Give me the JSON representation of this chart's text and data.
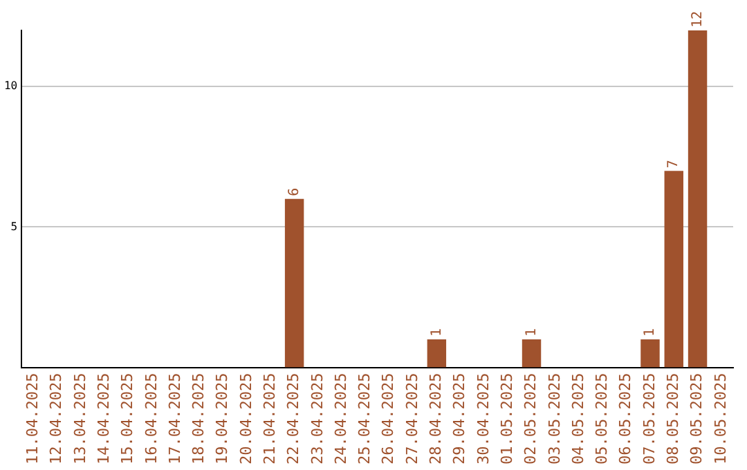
{
  "chart_data": {
    "type": "bar",
    "categories": [
      "11.04.2025",
      "12.04.2025",
      "13.04.2025",
      "14.04.2025",
      "15.04.2025",
      "16.04.2025",
      "17.04.2025",
      "18.04.2025",
      "19.04.2025",
      "20.04.2025",
      "21.04.2025",
      "22.04.2025",
      "23.04.2025",
      "24.04.2025",
      "25.04.2025",
      "26.04.2025",
      "27.04.2025",
      "28.04.2025",
      "29.04.2025",
      "30.04.2025",
      "01.05.2025",
      "02.05.2025",
      "03.05.2025",
      "04.05.2025",
      "05.05.2025",
      "06.05.2025",
      "07.05.2025",
      "08.05.2025",
      "09.05.2025",
      "10.05.2025"
    ],
    "values": [
      0,
      0,
      0,
      0,
      0,
      0,
      0,
      0,
      0,
      0,
      0,
      6,
      0,
      0,
      0,
      0,
      0,
      1,
      0,
      0,
      0,
      1,
      0,
      0,
      0,
      0,
      1,
      7,
      12,
      0
    ],
    "value_labels": [
      null,
      null,
      null,
      null,
      null,
      null,
      null,
      null,
      null,
      null,
      null,
      "6",
      null,
      null,
      null,
      null,
      null,
      "1",
      null,
      null,
      null,
      "1",
      null,
      null,
      null,
      null,
      "1",
      "7",
      "12",
      null
    ],
    "color": "#a0522d",
    "ylim": [
      0,
      12
    ],
    "yticks": [
      5,
      10
    ],
    "grid": "y",
    "legend": false
  }
}
